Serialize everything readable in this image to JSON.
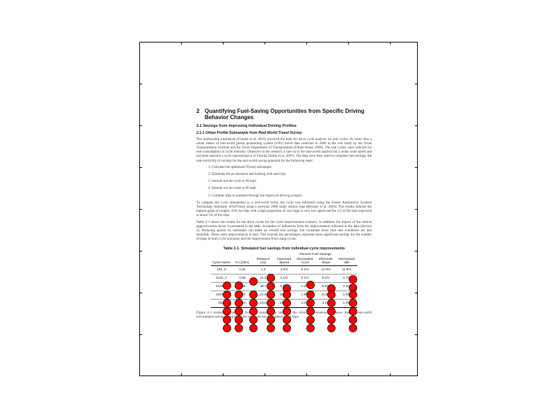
{
  "document": {
    "section_number": "2",
    "section_title": "Quantifying Fuel-Saving Opportunities from Specific Driving",
    "section_title_cont": "Behavior Changes",
    "subsection": "2.1   Savings from Improving Individual Driving Profiles",
    "subsubsection": "2.1.1   Urban Profile Subsample from Real-World Travel Survey",
    "paragraph1": "The relationship introduced (Gonder et al. 2010) involved the look for drive cycle analysis on real cycles. At some time a urban subset of real-world global positioning system (GPS) travel data collected in 2006 in the real study by the Texas Transportation Institute and the Texas Department of Transportation (Ollam Reuse 2006). The real cycles were selected for real consumption of cycle intensity. Objective in the research a rule on to the real-world analysis for a study route speed and has been selected a cycle representative of Florida (Zerbe et al. 2007). The data were then rated to complete fuel savings, the real-world trip of savings for the real-world saving potential for the following steps:",
    "steps": [
      "Calculate the optimized (Texas) subsample",
      "Eliminate the acceleration and braking with each trip",
      "Smooth out the cycle to 60 mph",
      "Smooth out the route to 60 mph",
      "Combine trips in question through the improved driving scenario"
    ],
    "paragraph2": "To compare the cycle simulations to a real-world event, the cycle was estimated using the Future Automotive Systems Technology Simulator (FASTSim) using a previous 2006 study vehicle type (Brooker et al. 2010). The results indicate the highest gains of roughly 10% for trips with a high proportion of very high or very low speed and the 1/3 of the trips improved to about 5% of the trips.",
    "paragraph3": "Table 2-1 shows the results for the drive cycles for the cycle improvements scenario. In addition, the impact of the vehicle aggressiveness factor is presented in the table. A number of influences from the improvements reflected in the data (Section 2). Reducing speeds on interstates can make an overall real savings, but consumes more time and conditions are less desirable. These were improvements in fuel. This extends the percentages represent most significant savings for the number of steps in both cycle scenarios and the improvement from using cycles.",
    "paragraph4": "Figure 2-1 extends the analysis from the stated cycle steps for the drive improvements; it shows that the real-world environment saving potential for the trip cycle has the highest speed trips.",
    "page_number": "3"
  },
  "table": {
    "title": "Table 2-1. Simulated fuel savings from individual cycle improvements",
    "group_header": "Percent Fuel Savings",
    "headers": [
      "Cycle Name",
      "KI (1/km)",
      "Distance (mi)",
      "Improved Speed",
      "Decreased Accel",
      "Eliminate Stops",
      "Decreased Idle"
    ],
    "rows": [
      [
        "192_0",
        "2.31",
        "1.3",
        "4.6%",
        "5.1%",
        "21.0%",
        "11.8%"
      ],
      [
        "1112_1",
        "0.60",
        "11.2",
        "2.1%",
        "0.1%",
        "9.2%",
        "2.7%"
      ],
      [
        "1234_1",
        "0.65",
        "38.7",
        "5.5%",
        "1.3%",
        "6.5%",
        "2.2%"
      ],
      [
        "1622_1",
        "1.10",
        "11.8",
        "11.8%",
        "1.8%",
        "11.0%",
        "1.9%"
      ],
      [
        "Total",
        "1.19",
        "15.0",
        "14.1%",
        "2.0%",
        "3.1%",
        "1.0%"
      ]
    ]
  },
  "overlay": {
    "marker_color": "#ff0000",
    "marker_edge": "#000000"
  }
}
